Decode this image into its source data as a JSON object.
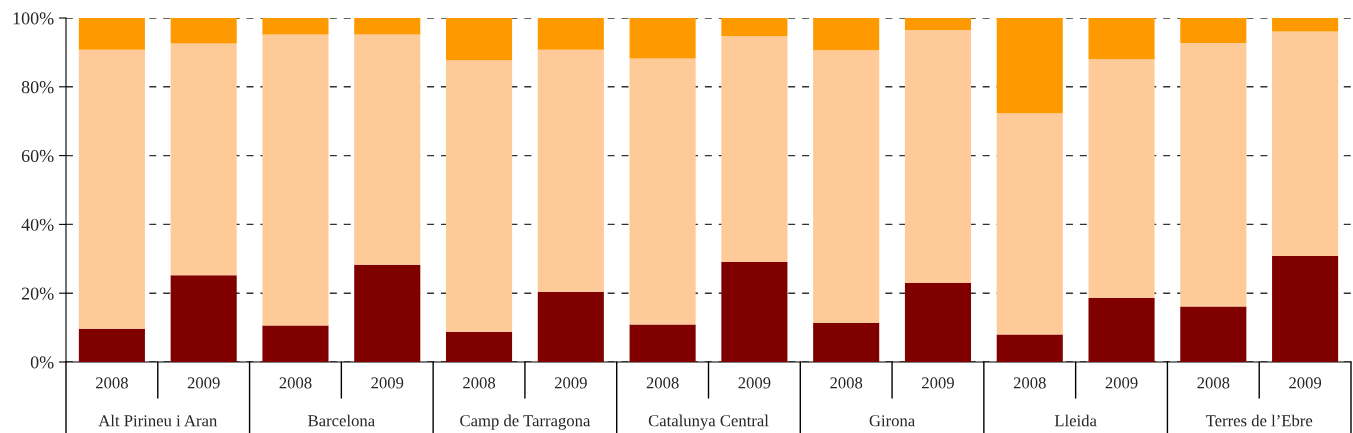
{
  "chart_data": {
    "type": "bar",
    "stacked": true,
    "categories": [
      "2008",
      "2009",
      "2008",
      "2009",
      "2008",
      "2009",
      "2008",
      "2009",
      "2008",
      "2009",
      "2008",
      "2009",
      "2008",
      "2009"
    ],
    "series": [
      {
        "color": "#800000",
        "values": [
          9.7,
          25.2,
          10.6,
          28.3,
          8.8,
          20.4,
          10.9,
          29.1,
          11.4,
          23.0,
          8.0,
          18.6,
          16.1,
          30.8
        ]
      },
      {
        "color": "#fdca98",
        "values": [
          81.1,
          67.4,
          84.6,
          66.9,
          78.9,
          70.4,
          77.3,
          65.6,
          79.2,
          73.5,
          64.3,
          69.4,
          76.6,
          65.3
        ]
      },
      {
        "color": "#ff9900",
        "values": [
          9.2,
          7.4,
          4.8,
          4.8,
          12.3,
          9.2,
          11.8,
          5.3,
          9.4,
          3.5,
          27.7,
          12.0,
          7.3,
          3.9
        ]
      }
    ],
    "annotations": [
      "Alt Pirineu i Aran",
      "Barcelona",
      "Camp de Tarragona",
      "Catalunya Central",
      "Girona",
      "Lleida",
      "Terres de l’Ebre"
    ],
    "ylim": [
      0,
      100
    ],
    "yticks": [
      {
        "value": 0,
        "label": "0%"
      },
      {
        "value": 20,
        "label": "20%"
      },
      {
        "value": 40,
        "label": "40%"
      },
      {
        "value": 60,
        "label": "60%"
      },
      {
        "value": 80,
        "label": "80%"
      },
      {
        "value": 100,
        "label": "100%"
      }
    ],
    "grid": "y",
    "legend": false
  }
}
